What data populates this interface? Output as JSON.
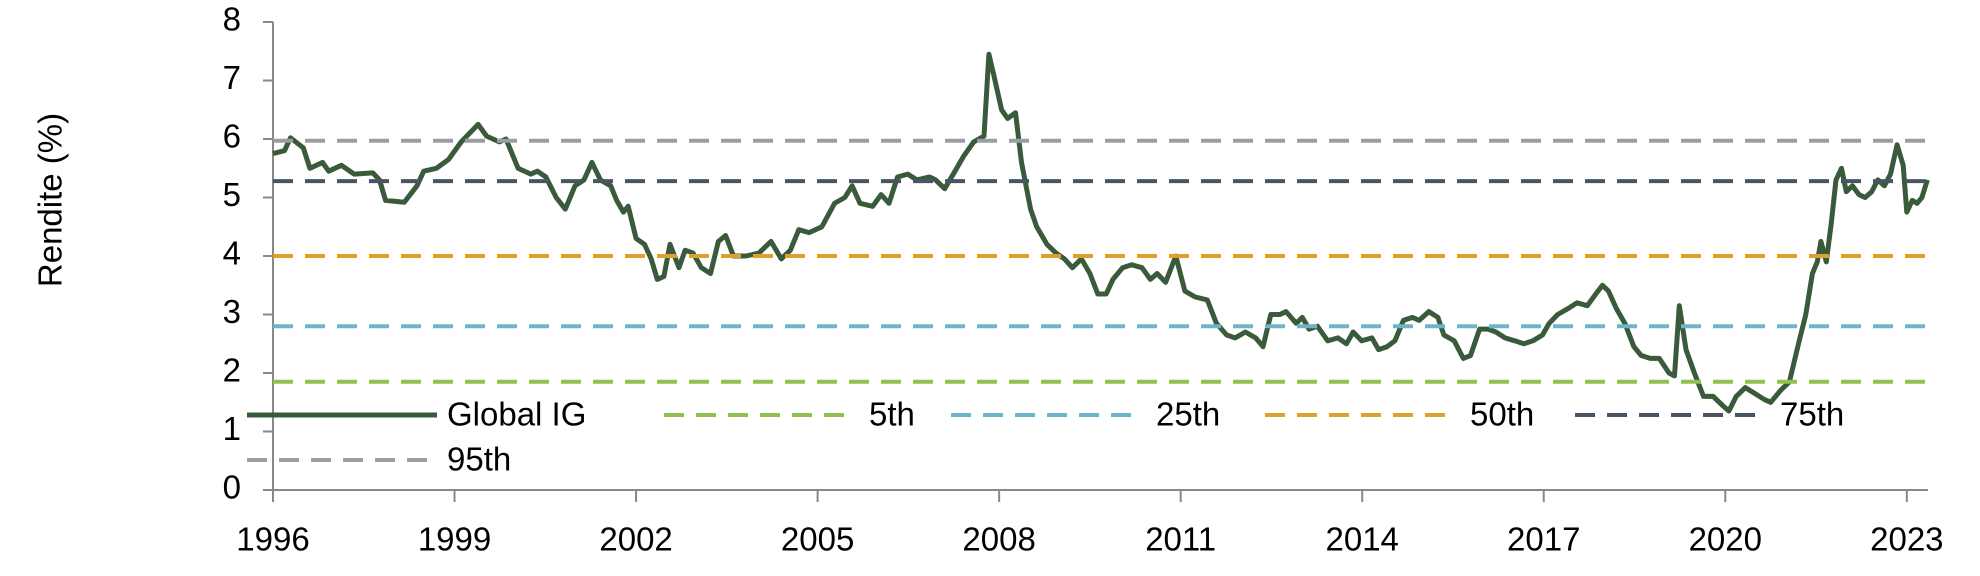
{
  "chart_data": {
    "type": "line",
    "y_label": "Rendite (%)",
    "xlim": [
      1996,
      2023.35
    ],
    "xticks": [
      1996,
      1999,
      2002,
      2005,
      2008,
      2011,
      2014,
      2017,
      2020,
      2023
    ],
    "ylim": [
      0,
      8
    ],
    "yticks": [
      0,
      1,
      2,
      3,
      4,
      5,
      6,
      7,
      8
    ],
    "x": [
      1996.0,
      1996.19,
      1996.29,
      1996.5,
      1996.61,
      1996.82,
      1996.92,
      1997.13,
      1997.34,
      1997.65,
      1997.76,
      1997.86,
      1998.17,
      1998.38,
      1998.49,
      1998.7,
      1998.9,
      1999.11,
      1999.39,
      1999.53,
      1999.74,
      1999.85,
      2000.05,
      2000.26,
      2000.37,
      2000.51,
      2000.68,
      2000.83,
      2000.99,
      2001.14,
      2001.27,
      2001.41,
      2001.58,
      2001.68,
      2001.79,
      2001.87,
      2002.0,
      2002.14,
      2002.25,
      2002.35,
      2002.46,
      2002.56,
      2002.71,
      2002.81,
      2002.94,
      2003.08,
      2003.23,
      2003.36,
      2003.48,
      2003.61,
      2003.82,
      2004.03,
      2004.23,
      2004.4,
      2004.55,
      2004.69,
      2004.86,
      2005.07,
      2005.28,
      2005.45,
      2005.57,
      2005.7,
      2005.91,
      2006.05,
      2006.18,
      2006.32,
      2006.49,
      2006.64,
      2006.85,
      2006.95,
      2007.1,
      2007.27,
      2007.41,
      2007.58,
      2007.75,
      2007.83,
      2007.91,
      2008.04,
      2008.14,
      2008.27,
      2008.37,
      2008.52,
      2008.62,
      2008.79,
      2008.94,
      2009.08,
      2009.21,
      2009.36,
      2009.5,
      2009.63,
      2009.77,
      2009.88,
      2010.04,
      2010.19,
      2010.36,
      2010.5,
      2010.61,
      2010.75,
      2010.92,
      2011.07,
      2011.24,
      2011.44,
      2011.59,
      2011.76,
      2011.9,
      2012.07,
      2012.24,
      2012.36,
      2012.49,
      2012.64,
      2012.74,
      2012.91,
      2013.01,
      2013.12,
      2013.26,
      2013.43,
      2013.6,
      2013.74,
      2013.85,
      2013.99,
      2014.16,
      2014.27,
      2014.41,
      2014.54,
      2014.68,
      2014.83,
      2014.94,
      2015.1,
      2015.25,
      2015.35,
      2015.52,
      2015.67,
      2015.79,
      2015.94,
      2016.08,
      2016.21,
      2016.36,
      2016.52,
      2016.67,
      2016.82,
      2016.98,
      2017.09,
      2017.23,
      2017.4,
      2017.55,
      2017.72,
      2017.86,
      2017.97,
      2018.07,
      2018.2,
      2018.34,
      2018.49,
      2018.61,
      2018.76,
      2018.91,
      2019.07,
      2019.16,
      2019.24,
      2019.35,
      2019.49,
      2019.64,
      2019.8,
      2019.95,
      2020.06,
      2020.18,
      2020.33,
      2020.49,
      2020.64,
      2020.75,
      2020.91,
      2021.06,
      2021.21,
      2021.33,
      2021.44,
      2021.52,
      2021.58,
      2021.67,
      2021.75,
      2021.83,
      2021.92,
      2022.0,
      2022.1,
      2022.21,
      2022.31,
      2022.42,
      2022.52,
      2022.63,
      2022.73,
      2022.84,
      2022.94,
      2023.0,
      2023.09,
      2023.17,
      2023.25,
      2023.34
    ],
    "series": [
      {
        "name": "Global IG",
        "color": "#3a5a3c",
        "values": [
          5.75,
          5.8,
          6.02,
          5.85,
          5.5,
          5.6,
          5.45,
          5.55,
          5.4,
          5.42,
          5.3,
          4.95,
          4.92,
          5.2,
          5.45,
          5.5,
          5.65,
          5.95,
          6.25,
          6.05,
          5.95,
          6.0,
          5.5,
          5.4,
          5.45,
          5.35,
          5.0,
          4.8,
          5.2,
          5.3,
          5.6,
          5.3,
          5.2,
          4.95,
          4.75,
          4.85,
          4.3,
          4.2,
          3.95,
          3.6,
          3.65,
          4.2,
          3.8,
          4.1,
          4.05,
          3.8,
          3.7,
          4.25,
          4.35,
          4.0,
          4.0,
          4.05,
          4.25,
          3.95,
          4.1,
          4.45,
          4.4,
          4.5,
          4.9,
          5.0,
          5.2,
          4.9,
          4.85,
          5.05,
          4.9,
          5.35,
          5.4,
          5.3,
          5.35,
          5.3,
          5.15,
          5.45,
          5.7,
          5.95,
          6.05,
          7.45,
          7.1,
          6.5,
          6.35,
          6.45,
          5.6,
          4.8,
          4.5,
          4.2,
          4.05,
          3.95,
          3.8,
          3.95,
          3.7,
          3.35,
          3.35,
          3.6,
          3.8,
          3.85,
          3.8,
          3.6,
          3.7,
          3.55,
          4.0,
          3.4,
          3.3,
          3.25,
          2.85,
          2.65,
          2.6,
          2.7,
          2.6,
          2.45,
          3.0,
          3.0,
          3.05,
          2.85,
          2.95,
          2.75,
          2.8,
          2.55,
          2.6,
          2.5,
          2.7,
          2.55,
          2.6,
          2.4,
          2.45,
          2.55,
          2.9,
          2.95,
          2.9,
          3.05,
          2.95,
          2.65,
          2.55,
          2.25,
          2.3,
          2.75,
          2.75,
          2.7,
          2.6,
          2.55,
          2.5,
          2.55,
          2.65,
          2.85,
          3.0,
          3.1,
          3.2,
          3.15,
          3.35,
          3.5,
          3.4,
          3.1,
          2.85,
          2.45,
          2.3,
          2.25,
          2.25,
          2.0,
          1.95,
          3.15,
          2.4,
          2.0,
          1.6,
          1.6,
          1.45,
          1.35,
          1.6,
          1.75,
          1.65,
          1.55,
          1.5,
          1.7,
          1.85,
          2.5,
          3.0,
          3.7,
          3.9,
          4.25,
          3.9,
          4.55,
          5.3,
          5.5,
          5.1,
          5.2,
          5.05,
          5.0,
          5.1,
          5.3,
          5.2,
          5.4,
          5.9,
          5.55,
          4.75,
          4.95,
          4.9,
          5.0,
          5.3
        ]
      },
      {
        "name": "5th",
        "color": "#92c050",
        "value": 1.85
      },
      {
        "name": "25th",
        "color": "#6cb4c8",
        "value": 2.8
      },
      {
        "name": "50th",
        "color": "#e0a030",
        "value": 4.0
      },
      {
        "name": "75th",
        "color": "#4a5563",
        "value": 5.28
      },
      {
        "name": "95th",
        "color": "#9a9ea3",
        "value": 5.97
      }
    ]
  }
}
